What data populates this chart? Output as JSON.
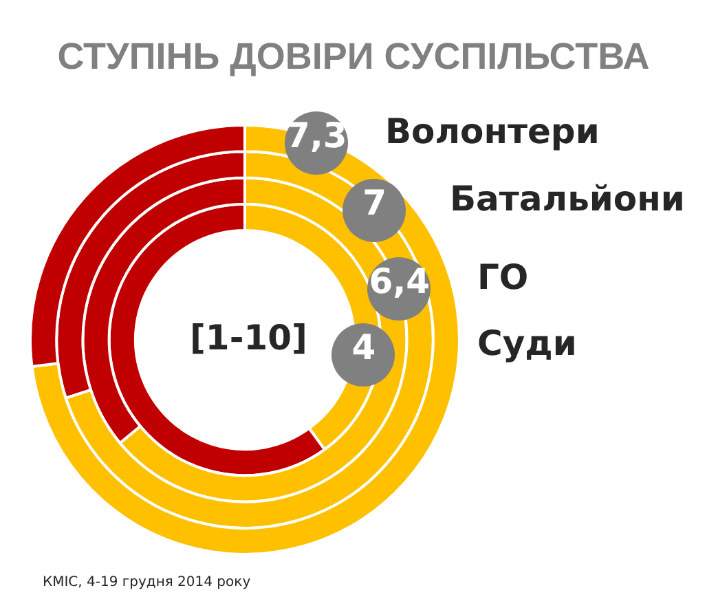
{
  "chart_data": {
    "type": "donut",
    "title": "СТУПІНЬ ДОВІРИ СУСПІЛЬСТВА",
    "categories": [
      null,
      null
    ],
    "series": [
      {
        "name": "Волонтери",
        "values": [
          7.3,
          2.7
        ],
        "colors": [
          "#ffc000",
          "#c00000"
        ],
        "value_labels": [
          "7,3",
          null
        ]
      },
      {
        "name": "Батальйони",
        "values": [
          7,
          3
        ],
        "colors": [
          "#ffc000",
          "#c00000"
        ],
        "value_labels": [
          "7",
          null
        ]
      },
      {
        "name": "ГО",
        "values": [
          6.4,
          3.6
        ],
        "colors": [
          "#ffc000",
          "#c00000"
        ],
        "value_labels": [
          "6,4",
          null
        ]
      },
      {
        "name": "Суди",
        "values": [
          4,
          6
        ],
        "colors": [
          "#ffc000",
          "#c00000"
        ],
        "value_labels": [
          "4",
          null
        ]
      }
    ],
    "annotations": [
      "[1-10]",
      "КМІС, 4-19 грудня 2014 року"
    ]
  }
}
